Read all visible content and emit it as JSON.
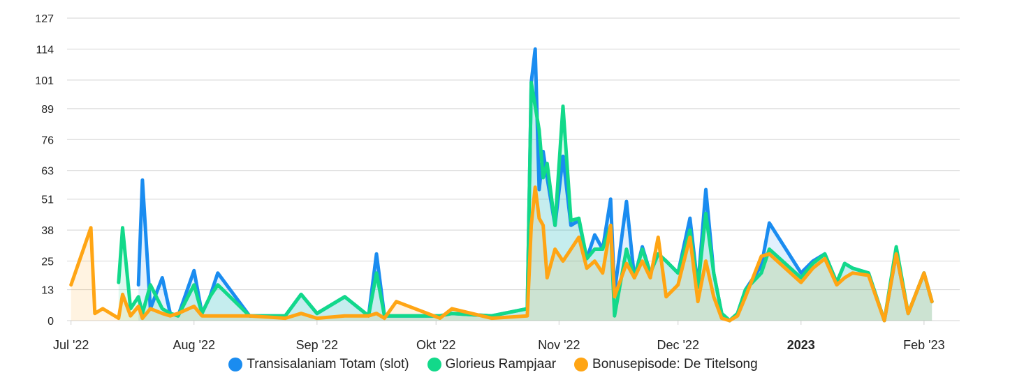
{
  "chart_data": {
    "type": "line",
    "x": [
      "2022-07-01",
      "2022-07-06",
      "2022-07-07",
      "2022-07-09",
      "2022-07-13",
      "2022-07-14",
      "2022-07-16",
      "2022-07-18",
      "2022-07-19",
      "2022-07-21",
      "2022-07-24",
      "2022-07-26",
      "2022-07-28",
      "2022-08-01",
      "2022-08-03",
      "2022-08-05",
      "2022-08-07",
      "2022-08-15",
      "2022-08-24",
      "2022-08-28",
      "2022-09-01",
      "2022-09-08",
      "2022-09-14",
      "2022-09-16",
      "2022-09-18",
      "2022-09-21",
      "2022-10-02",
      "2022-10-05",
      "2022-10-15",
      "2022-10-24",
      "2022-10-25",
      "2022-10-26",
      "2022-10-27",
      "2022-10-28",
      "2022-10-29",
      "2022-10-31",
      "2022-11-02",
      "2022-11-04",
      "2022-11-06",
      "2022-11-08",
      "2022-11-10",
      "2022-11-12",
      "2022-11-14",
      "2022-11-15",
      "2022-11-18",
      "2022-11-20",
      "2022-11-22",
      "2022-11-24",
      "2022-11-26",
      "2022-11-28",
      "2022-12-01",
      "2022-12-04",
      "2022-12-06",
      "2022-12-08",
      "2022-12-10",
      "2022-12-12",
      "2022-12-14",
      "2022-12-16",
      "2022-12-18",
      "2022-12-22",
      "2022-12-24",
      "2023-01-01",
      "2023-01-04",
      "2023-01-07",
      "2023-01-10",
      "2023-01-12",
      "2023-01-14",
      "2023-01-18",
      "2023-01-22",
      "2023-01-25",
      "2023-01-28",
      "2023-02-01",
      "2023-02-03",
      "2023-02-05",
      "2023-02-07",
      "2023-02-09"
    ],
    "series": [
      {
        "name": "Transisalaniam Totam (slot)",
        "color": "#1a8cf0",
        "values": [
          null,
          null,
          null,
          null,
          null,
          null,
          null,
          15,
          59,
          5,
          18,
          3,
          2,
          21,
          3,
          10,
          20,
          2,
          2,
          11,
          3,
          10,
          2,
          28,
          2,
          2,
          2,
          3,
          2,
          5,
          100,
          114,
          55,
          71,
          60,
          40,
          69,
          40,
          42,
          26,
          36,
          30,
          51,
          12,
          50,
          18,
          31,
          20,
          28,
          25,
          20,
          43,
          14,
          55,
          20,
          3,
          0,
          3,
          13,
          23,
          41,
          20,
          25,
          28,
          16,
          24,
          22,
          20,
          0,
          28,
          3,
          20,
          8,
          null,
          null,
          null
        ],
        "visible_from": "2022-07-19"
      },
      {
        "name": "Glorieus Rampjaar",
        "color": "#12d98a",
        "values": [
          null,
          null,
          null,
          null,
          16,
          39,
          5,
          10,
          3,
          15,
          5,
          3,
          2,
          15,
          3,
          10,
          15,
          2,
          2,
          11,
          3,
          10,
          2,
          20,
          2,
          2,
          2,
          3,
          2,
          5,
          100,
          90,
          80,
          60,
          66,
          40,
          90,
          42,
          43,
          26,
          30,
          30,
          40,
          2,
          30,
          18,
          30,
          20,
          28,
          25,
          20,
          38,
          14,
          45,
          20,
          3,
          0,
          3,
          13,
          20,
          30,
          18,
          24,
          28,
          16,
          24,
          22,
          20,
          0,
          31,
          3,
          20,
          8,
          null,
          null,
          null
        ]
      },
      {
        "name": "Bonusepisode: De Titelsong",
        "color": "#ffa514",
        "values": [
          15,
          39,
          3,
          5,
          1,
          11,
          2,
          6,
          1,
          5,
          3,
          2,
          3,
          6,
          2,
          2,
          2,
          2,
          1,
          3,
          1,
          2,
          2,
          3,
          1,
          8,
          1,
          5,
          1,
          2,
          40,
          56,
          43,
          40,
          18,
          30,
          25,
          30,
          35,
          22,
          25,
          20,
          40,
          10,
          24,
          18,
          25,
          18,
          35,
          10,
          15,
          35,
          8,
          25,
          10,
          1,
          0,
          2,
          10,
          27,
          28,
          16,
          22,
          26,
          15,
          18,
          20,
          19,
          0,
          28,
          3,
          20,
          8,
          null,
          null,
          null
        ]
      }
    ],
    "x_tick_labels": [
      "Jul '22",
      "Aug '22",
      "Sep '22",
      "Okt '22",
      "Nov '22",
      "Dec '22",
      "2023",
      "Feb '23"
    ],
    "y_tick_labels": [
      "0",
      "13",
      "25",
      "38",
      "51",
      "63",
      "76",
      "89",
      "101",
      "114",
      "127"
    ],
    "ylim": [
      0,
      127
    ],
    "grid": true,
    "legend_position": "bottom",
    "title": "",
    "xlabel": "",
    "ylabel": ""
  }
}
